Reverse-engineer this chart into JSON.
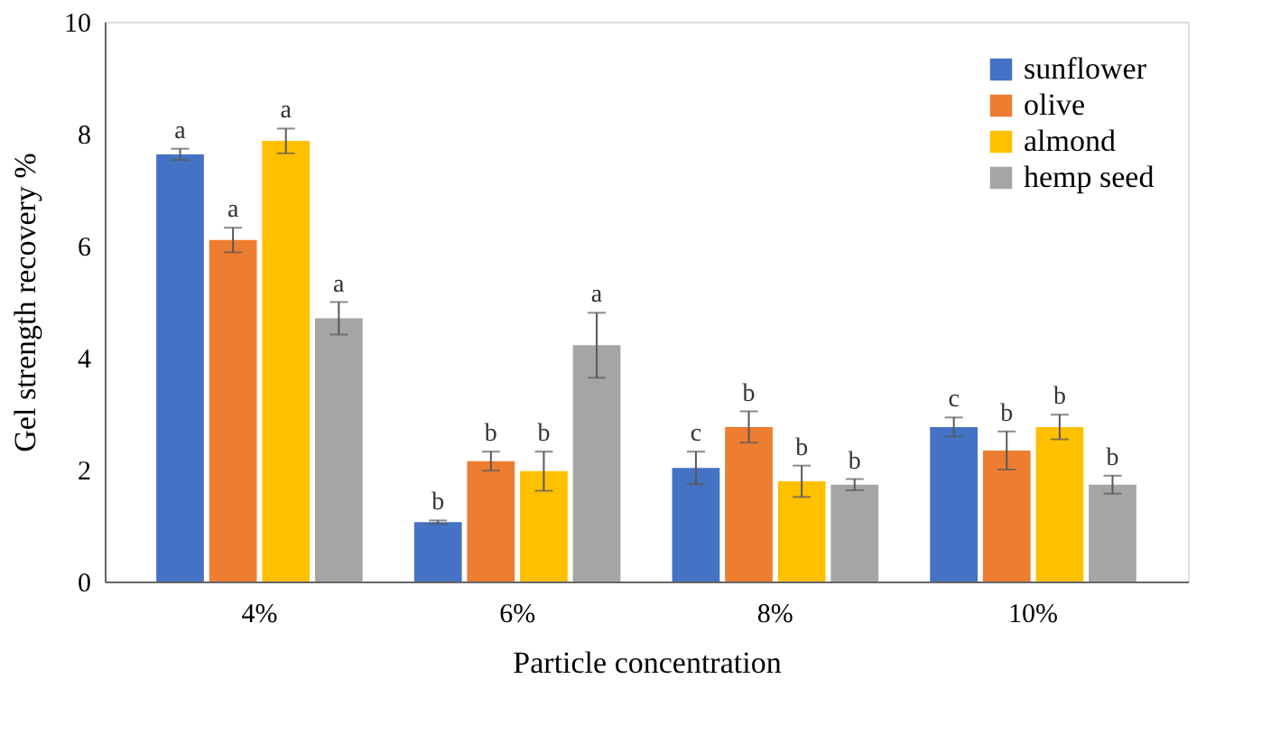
{
  "chart_data": {
    "type": "bar",
    "xlabel": "Particle concentration",
    "ylabel": "Gel strength recovery %",
    "categories": [
      "4%",
      "6%",
      "8%",
      "10%"
    ],
    "series": [
      {
        "name": "sunflower",
        "color": "#4472c4",
        "values": [
          7.63,
          1.06,
          2.03,
          2.76
        ],
        "errors": [
          0.1,
          0.03,
          0.29,
          0.17
        ],
        "value_labels": [
          "a",
          "b",
          "c",
          "c"
        ]
      },
      {
        "name": "olive",
        "color": "#ed7d31",
        "values": [
          6.1,
          2.15,
          2.76,
          2.34
        ],
        "errors": [
          0.22,
          0.17,
          0.28,
          0.34
        ],
        "value_labels": [
          "a",
          "b",
          "b",
          "b"
        ]
      },
      {
        "name": "almond",
        "color": "#ffc000",
        "values": [
          7.87,
          1.97,
          1.79,
          2.76
        ],
        "errors": [
          0.22,
          0.35,
          0.28,
          0.22
        ],
        "value_labels": [
          "a",
          "b",
          "b",
          "b"
        ]
      },
      {
        "name": "hemp seed",
        "color": "#a5a5a5",
        "values": [
          4.7,
          4.22,
          1.73,
          1.73
        ],
        "errors": [
          0.29,
          0.58,
          0.1,
          0.16
        ],
        "value_labels": [
          "a",
          "a",
          "b",
          "b"
        ]
      }
    ],
    "ylim": [
      0,
      10
    ],
    "yticks": [
      0,
      2,
      4,
      6,
      8,
      10
    ],
    "grid": false,
    "legend": "top right"
  }
}
